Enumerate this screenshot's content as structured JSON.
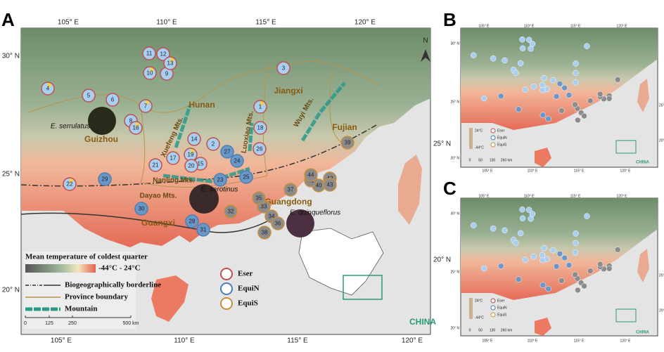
{
  "panels": {
    "a": "A",
    "b": "B",
    "c": "C"
  },
  "map_a": {
    "lon_top": [
      "105° E",
      "110° E",
      "115° E",
      "120° E"
    ],
    "lon_bottom": [
      "105° E",
      "110° E",
      "115° E",
      "120° E"
    ],
    "lat_left": [
      "30° N",
      "25° N",
      "20° N"
    ],
    "lat_right": [
      "25° N",
      "20° N"
    ],
    "provinces": [
      "Hunan",
      "Jiangxi",
      "Guizhou",
      "Guangxi",
      "Guangdong",
      "Fujian"
    ],
    "mountains": [
      "Xuefeng Mts.",
      "Luoxiao Mts.",
      "Wuyi Mts.",
      "Nanling Mts.",
      "Dayao Mts."
    ],
    "species": [
      "E. serrulatus",
      "E. serotinus",
      "E. quinqueflorus"
    ],
    "north": "N",
    "country": "CHINA",
    "legend": {
      "temperature_title": "Mean temperature of coldest quarter",
      "temperature_range": "-44°C - 24°C",
      "borderline": "Biogeographically borderline",
      "province": "Province boundary",
      "mountain": "Mountain",
      "groups": [
        "Eser",
        "EquiN",
        "EquiS"
      ],
      "scale": [
        "0",
        "125",
        "250",
        "500 km"
      ]
    },
    "sites": [
      {
        "label": 1,
        "group": "Eser"
      },
      {
        "label": 2,
        "group": "Eser"
      },
      {
        "label": 3,
        "group": "Eser"
      },
      {
        "label": 4,
        "group": "Eser"
      },
      {
        "label": 5,
        "group": "Eser"
      },
      {
        "label": 6,
        "group": "Eser"
      },
      {
        "label": 7,
        "group": "Eser"
      },
      {
        "label": 8,
        "group": "Eser"
      },
      {
        "label": 9,
        "group": "Eser"
      },
      {
        "label": 10,
        "group": "Eser"
      },
      {
        "label": 11,
        "group": "Eser"
      },
      {
        "label": 12,
        "group": "Eser"
      },
      {
        "label": 13,
        "group": "Eser"
      },
      {
        "label": 14,
        "group": "Eser"
      },
      {
        "label": 15,
        "group": "Eser"
      },
      {
        "label": 16,
        "group": "Eser"
      },
      {
        "label": 17,
        "group": "Eser"
      },
      {
        "label": 18,
        "group": "Eser"
      },
      {
        "label": 19,
        "group": "Eser"
      },
      {
        "label": 20,
        "group": "Eser"
      },
      {
        "label": 21,
        "group": "Eser"
      },
      {
        "label": 22,
        "group": "Eser"
      },
      {
        "label": 23,
        "group": "EquiN"
      },
      {
        "label": 24,
        "group": "EquiN"
      },
      {
        "label": 25,
        "group": "EquiN"
      },
      {
        "label": 26,
        "group": "Eser"
      },
      {
        "label": 27,
        "group": "EquiN"
      },
      {
        "label": 28,
        "group": "EquiN"
      },
      {
        "label": 29,
        "group": "EquiN"
      },
      {
        "label": 30,
        "group": "EquiN"
      },
      {
        "label": 31,
        "group": "EquiN"
      },
      {
        "label": 32,
        "group": "EquiS"
      },
      {
        "label": 33,
        "group": "EquiS"
      },
      {
        "label": 34,
        "group": "EquiS"
      },
      {
        "label": 35,
        "group": "EquiS"
      },
      {
        "label": 36,
        "group": "EquiS"
      },
      {
        "label": 37,
        "group": "EquiS"
      },
      {
        "label": 38,
        "group": "EquiS"
      },
      {
        "label": 39,
        "group": "EquiS"
      },
      {
        "label": 40,
        "group": "EquiS"
      },
      {
        "label": 41,
        "group": "EquiS"
      },
      {
        "label": 42,
        "group": "EquiS"
      },
      {
        "label": 43,
        "group": "EquiS"
      },
      {
        "label": 44,
        "group": "EquiS"
      }
    ]
  },
  "map_b": {
    "lon": [
      "105° E",
      "110° E",
      "115° E",
      "120° E"
    ],
    "lat": [
      "30° N",
      "25° N",
      "20° N"
    ],
    "legend": [
      "24°C",
      "-44°C",
      "Eser",
      "EquiN",
      "EquiS"
    ],
    "scale": [
      "0",
      "50",
      "130",
      "260 km"
    ],
    "country": "CHINA"
  },
  "map_c": {
    "lon": [
      "105° E",
      "110° E",
      "115° E",
      "120° E"
    ],
    "lat": [
      "30° N",
      "25° N",
      "20° N"
    ],
    "legend": [
      "24°C",
      "-44°C",
      "Eser",
      "EquiN",
      "EquiS"
    ],
    "scale": [
      "0",
      "50",
      "130",
      "260 km"
    ],
    "country": "CHINA"
  }
}
